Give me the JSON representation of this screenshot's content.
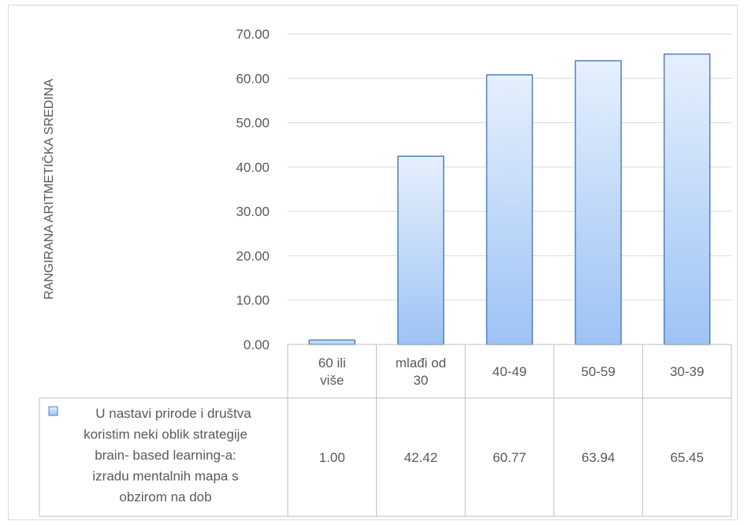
{
  "chart_data": {
    "type": "bar",
    "title": "",
    "xlabel": "",
    "ylabel": "RANGIRANA ARITMETIČKA SREDINA",
    "ylim": [
      0,
      70
    ],
    "y_ticks": [
      "0.00",
      "10.00",
      "20.00",
      "30.00",
      "40.00",
      "50.00",
      "60.00",
      "70.00"
    ],
    "grid": true,
    "legend_placement": "data-table",
    "categories": [
      [
        "60 ili",
        "više"
      ],
      [
        "mlađi od",
        "30"
      ],
      [
        "40-49"
      ],
      [
        "50-59"
      ],
      [
        "30-39"
      ]
    ],
    "series": [
      {
        "name": [
          "U nastavi prirode i društva",
          "koristim neki oblik strategije",
          "brain- based learning-a:",
          "izradu mentalnih mapa s",
          "obzirom na dob"
        ],
        "values": [
          1.0,
          42.42,
          60.77,
          63.94,
          65.45
        ],
        "labels": [
          "1.00",
          "42.42",
          "60.77",
          "63.94",
          "65.45"
        ],
        "color": "#9dc3f5",
        "border_color": "#4f81bd"
      }
    ]
  }
}
